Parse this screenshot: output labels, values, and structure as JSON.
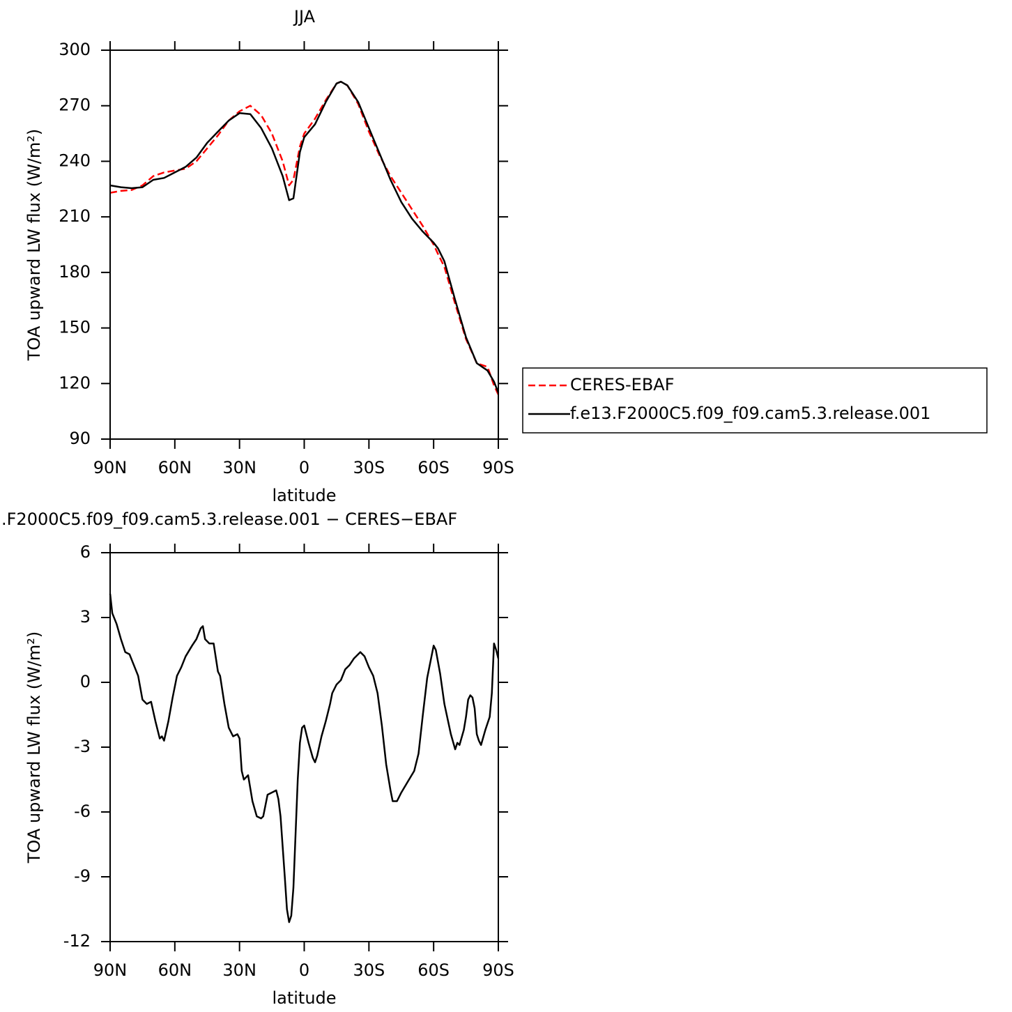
{
  "chart_data": [
    {
      "type": "line",
      "title": "JJA",
      "xlabel": "latitude",
      "ylabel": "TOA upward LW flux (W/m²)",
      "x": [
        90,
        85,
        80,
        75,
        70,
        65,
        60,
        55,
        50,
        45,
        40,
        35,
        30,
        25,
        20,
        15,
        10,
        7,
        5,
        2,
        0,
        -5,
        -10,
        -15,
        -17,
        -20,
        -25,
        -30,
        -35,
        -40,
        -45,
        -50,
        -55,
        -60,
        -62,
        -65,
        -70,
        -75,
        -80,
        -85,
        -88,
        -90
      ],
      "xlim": [
        90,
        -90
      ],
      "xticks": [
        {
          "value": 90,
          "label": "90N"
        },
        {
          "value": 60,
          "label": "60N"
        },
        {
          "value": 30,
          "label": "30N"
        },
        0,
        {
          "value": -30,
          "label": "30S"
        },
        {
          "value": -60,
          "label": "60S"
        },
        {
          "value": -90,
          "label": "90S"
        }
      ],
      "ylim": [
        90,
        300
      ],
      "yticks": [
        90,
        120,
        150,
        180,
        210,
        240,
        270,
        300
      ],
      "legend": "outside-right",
      "series": [
        {
          "name": "CERES-EBAF",
          "color": "#ff0000",
          "dash": true,
          "values": [
            223,
            224,
            224.5,
            227,
            232,
            234,
            235,
            236,
            240,
            247,
            254,
            262,
            267,
            270,
            265,
            255,
            240,
            227,
            230,
            248,
            255,
            263,
            273,
            282,
            283,
            281,
            271,
            256,
            243,
            232,
            223,
            214,
            205,
            195,
            190,
            183,
            163,
            144,
            131,
            129,
            119,
            114
          ]
        },
        {
          "name": "f.e13.F2000C5.f09_f09.cam5.3.release.001",
          "color": "#000000",
          "dash": false,
          "values": [
            227,
            226,
            225.5,
            226,
            230,
            231,
            234,
            237,
            242,
            250,
            256,
            262,
            266,
            265.5,
            258,
            247,
            232,
            219,
            220,
            245,
            253,
            260,
            272,
            282,
            283,
            281,
            272,
            258,
            244,
            230,
            218,
            209,
            202,
            196,
            193,
            186,
            165,
            145,
            131,
            127,
            121,
            115
          ]
        }
      ]
    },
    {
      "type": "line",
      "title": ".F2000C5.f09_f09.cam5.3.release.001 − CERES−EBAF",
      "xlabel": "latitude",
      "ylabel": "TOA upward LW flux (W/m²)",
      "x": [
        90,
        89,
        87,
        85,
        83,
        81,
        79,
        77,
        75,
        73,
        71,
        69,
        67,
        66,
        65,
        63,
        61,
        59,
        57,
        55,
        52,
        50,
        48,
        47,
        46,
        44,
        42,
        40,
        39,
        37,
        35,
        33,
        31,
        30,
        29,
        28,
        26,
        24,
        22,
        20,
        19,
        17,
        15,
        13,
        12,
        11,
        9,
        8,
        7,
        6,
        5,
        4,
        3,
        2,
        1,
        0,
        -2,
        -4,
        -5,
        -6,
        -8,
        -10,
        -12,
        -13,
        -15,
        -17,
        -19,
        -21,
        -23,
        -26,
        -28,
        -30,
        -32,
        -34,
        -36,
        -38,
        -40,
        -41,
        -43,
        -45,
        -48,
        -51,
        -53,
        -55,
        -57,
        -59,
        -60,
        -61,
        -63,
        -65,
        -68,
        -70,
        -71,
        -72,
        -74,
        -75,
        -76,
        -77,
        -78,
        -79,
        -80,
        -81,
        -82,
        -84,
        -86,
        -87,
        -88,
        -89,
        -90
      ],
      "values": [
        4.1,
        3.2,
        2.7,
        2.0,
        1.4,
        1.3,
        0.8,
        0.3,
        -0.8,
        -1.0,
        -0.9,
        -1.8,
        -2.6,
        -2.5,
        -2.7,
        -1.8,
        -0.7,
        0.3,
        0.7,
        1.2,
        1.7,
        2.0,
        2.5,
        2.6,
        2.0,
        1.8,
        1.8,
        0.5,
        0.3,
        -1.0,
        -2.1,
        -2.5,
        -2.4,
        -2.6,
        -4.1,
        -4.5,
        -4.3,
        -5.5,
        -6.2,
        -6.3,
        -6.2,
        -5.2,
        -5.1,
        -5.0,
        -5.4,
        -6.2,
        -9.0,
        -10.5,
        -11.1,
        -10.8,
        -9.5,
        -7.0,
        -4.5,
        -2.8,
        -2.1,
        -2.0,
        -2.8,
        -3.5,
        -3.7,
        -3.4,
        -2.5,
        -1.8,
        -1.0,
        -0.5,
        -0.1,
        0.1,
        0.6,
        0.8,
        1.1,
        1.4,
        1.2,
        0.7,
        0.3,
        -0.5,
        -2.0,
        -3.8,
        -5.0,
        -5.5,
        -5.5,
        -5.1,
        -4.6,
        -4.1,
        -3.3,
        -1.5,
        0.2,
        1.2,
        1.7,
        1.5,
        0.4,
        -1.0,
        -2.4,
        -3.1,
        -2.8,
        -2.9,
        -2.2,
        -1.6,
        -0.8,
        -0.6,
        -0.7,
        -1.2,
        -2.4,
        -2.7,
        -2.9,
        -2.2,
        -1.6,
        -0.5,
        1.8,
        1.5,
        1.1
      ],
      "color": "#000000",
      "xlim": [
        90,
        -90
      ],
      "xticks": [
        {
          "value": 90,
          "label": "90N"
        },
        {
          "value": 60,
          "label": "60N"
        },
        {
          "value": 30,
          "label": "30N"
        },
        0,
        {
          "value": -30,
          "label": "30S"
        },
        {
          "value": -60,
          "label": "60S"
        },
        {
          "value": -90,
          "label": "90S"
        }
      ],
      "ylim": [
        -12,
        6
      ],
      "yticks": [
        -12,
        -9,
        -6,
        -3,
        0,
        3,
        6
      ]
    }
  ]
}
